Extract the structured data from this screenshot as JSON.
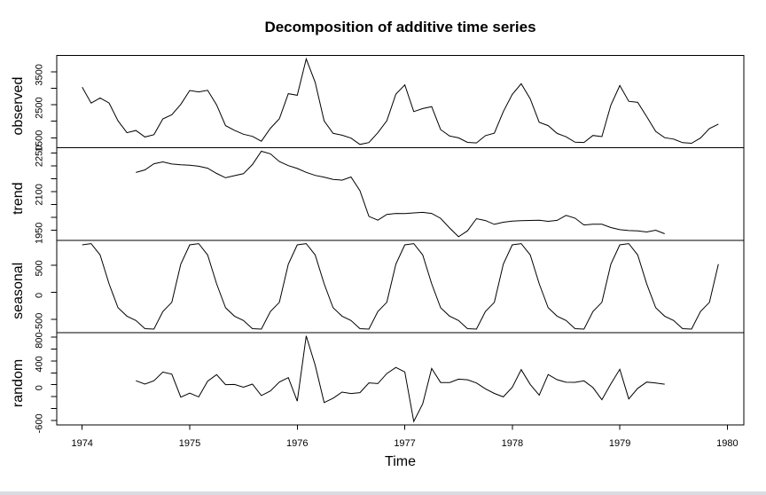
{
  "window": {
    "background": "#ffffff",
    "bottom_edge_color": "#d9dce0"
  },
  "chart_data": {
    "type": "line",
    "title": "Decomposition of additive time series",
    "xlabel": "Time",
    "line_color": "#000000",
    "axis_color": "#000000",
    "grid": false,
    "legend": "none",
    "xlim": [
      1973.7633,
      1980.1533
    ],
    "x_ticks": [
      1974,
      1975,
      1976,
      1977,
      1978,
      1979,
      1980
    ],
    "points_per_year": 12,
    "panels": [
      {
        "name": "observed",
        "ylim": [
          1196.4,
          3994.6
        ],
        "ticks": [
          {
            "v": 1500,
            "label": "1500"
          },
          {
            "v": 2000,
            "label": ""
          },
          {
            "v": 2500,
            "label": "2500"
          },
          {
            "v": 3000,
            "label": ""
          },
          {
            "v": 3500,
            "label": "3500"
          }
        ],
        "t0": 1974.0,
        "values": [
          3035,
          2552,
          2704,
          2554,
          2014,
          1655,
          1721,
          1524,
          1596,
          2074,
          2199,
          2512,
          2933,
          2889,
          2938,
          2497,
          1870,
          1726,
          1607,
          1545,
          1396,
          1787,
          2076,
          2837,
          2787,
          3891,
          3179,
          2011,
          1636,
          1580,
          1489,
          1300,
          1356,
          1653,
          2013,
          2823,
          3102,
          2294,
          2385,
          2444,
          1748,
          1554,
          1498,
          1361,
          1346,
          1564,
          1640,
          2293,
          2815,
          3137,
          2679,
          1969,
          1870,
          1633,
          1529,
          1366,
          1357,
          1570,
          1535,
          2491,
          3084,
          2605,
          2573,
          2143,
          1693,
          1504,
          1461,
          1354,
          1333,
          1492,
          1781,
          1915
        ]
      },
      {
        "name": "trend",
        "ylim": [
          1910.5,
          2269.8
        ],
        "ticks": [
          {
            "v": 1950,
            "label": "1950"
          },
          {
            "v": 2000,
            "label": ""
          },
          {
            "v": 2050,
            "label": ""
          },
          {
            "v": 2100,
            "label": "2100"
          },
          {
            "v": 2150,
            "label": ""
          },
          {
            "v": 2200,
            "label": ""
          },
          {
            "v": 2250,
            "label": "2250"
          }
        ],
        "t0": 1974.5,
        "values": [
          2174.1,
          2183.9,
          2207.7,
          2215.0,
          2206.7,
          2203.6,
          2201.8,
          2198.0,
          2190.5,
          2170.2,
          2153.1,
          2161.5,
          2169.0,
          2204.7,
          2256.5,
          2246.3,
          2216.3,
          2200.4,
          2189.4,
          2174.3,
          2162.4,
          2155.2,
          2147.0,
          2143.8,
          2156.3,
          2102.9,
          2003.3,
          1988.2,
          2010.9,
          2014.5,
          2013.8,
          2016.7,
          2018.8,
          2014.7,
          1995.5,
          1957.8,
          1923.8,
          1947.0,
          1994.3,
          1986.8,
          1972.1,
          1980.5,
          1985.0,
          1986.5,
          1987.2,
          1987.9,
          1983.8,
          1987.7,
          2007.1,
          1996.2,
          1969.6,
          1972.4,
          1972.3,
          1959.5,
          1951.3,
          1948.0,
          1946.5,
          1942.3,
          1949.3,
          1935.5
        ]
      },
      {
        "name": "seasonal",
        "ylim": [
          -741.2,
          959.3
        ],
        "ticks": [
          {
            "v": -500,
            "label": "-500"
          },
          {
            "v": 0,
            "label": "0"
          },
          {
            "v": 500,
            "label": "500"
          }
        ],
        "t0": 1974.0,
        "monthly_figure": [
          873.8,
          896.3,
          687.5,
          156.6,
          -284.5,
          -440.0,
          -519.4,
          -669.9,
          -678.2,
          -354.3,
          -185.2,
          517.3
        ],
        "cycles": 6
      },
      {
        "name": "random",
        "ylim": [
          -676.6,
          878.0
        ],
        "ticks": [
          {
            "v": -600,
            "label": "-600"
          },
          {
            "v": -400,
            "label": ""
          },
          {
            "v": -200,
            "label": ""
          },
          {
            "v": 0,
            "label": "0"
          },
          {
            "v": 200,
            "label": ""
          },
          {
            "v": 400,
            "label": "400"
          },
          {
            "v": 600,
            "label": ""
          },
          {
            "v": 800,
            "label": "800"
          }
        ],
        "t0": 1974.5,
        "values": [
          66.3,
          10.0,
          66.6,
          213.3,
          177.5,
          -209.0,
          -142.6,
          -205.3,
          60.0,
          170.2,
          1.4,
          4.5,
          -42.6,
          10.2,
          -182.2,
          -104.9,
          45.0,
          119.3,
          -276.2,
          820.4,
          329.0,
          -300.8,
          -226.5,
          -123.7,
          -147.9,
          -133.0,
          31.0,
          19.1,
          187.3,
          291.2,
          214.5,
          -619.0,
          -321.4,
          272.7,
          37.0,
          36.2,
          93.6,
          83.9,
          29.9,
          -68.5,
          -146.9,
          -204.8,
          -43.8,
          254.1,
          4.3,
          -175.5,
          170.7,
          85.4,
          41.3,
          39.7,
          65.6,
          -48.1,
          -252.1,
          14.1,
          258.9,
          -239.3,
          -61.0,
          44.2,
          28.2,
          8.5
        ]
      }
    ]
  }
}
